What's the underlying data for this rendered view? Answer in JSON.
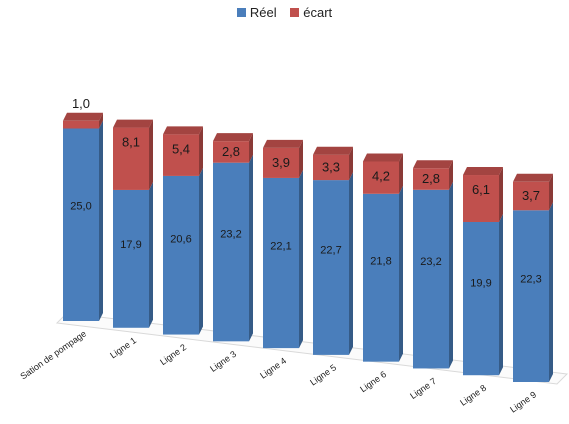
{
  "chart_data": {
    "type": "bar",
    "stacked": true,
    "three_d": true,
    "categories": [
      "Sation de pompage",
      "Ligne 1",
      "Ligne 2",
      "Ligne 3",
      "Ligne 4",
      "Ligne 5",
      "Ligne 6",
      "Ligne 7",
      "Ligne 8",
      "Ligne 9"
    ],
    "series": [
      {
        "name": "Réel",
        "color": "#4a7ebb",
        "values": [
          25.0,
          17.9,
          20.6,
          23.2,
          22.1,
          22.7,
          21.8,
          23.2,
          19.9,
          22.3
        ],
        "labels": [
          "25,0",
          "17,9",
          "20,6",
          "23,2",
          "22,1",
          "22,7",
          "21,8",
          "23,2",
          "19,9",
          "22,3"
        ]
      },
      {
        "name": "écart",
        "color": "#c0504d",
        "values": [
          1.0,
          8.1,
          5.4,
          2.8,
          3.9,
          3.3,
          4.2,
          2.8,
          6.1,
          3.7
        ],
        "labels": [
          "1,0",
          "8,1",
          "5,4",
          "2,8",
          "3,9",
          "3,3",
          "4,2",
          "2,8",
          "6,1",
          "3,7"
        ]
      }
    ],
    "legend_position": "top",
    "grid": false
  }
}
